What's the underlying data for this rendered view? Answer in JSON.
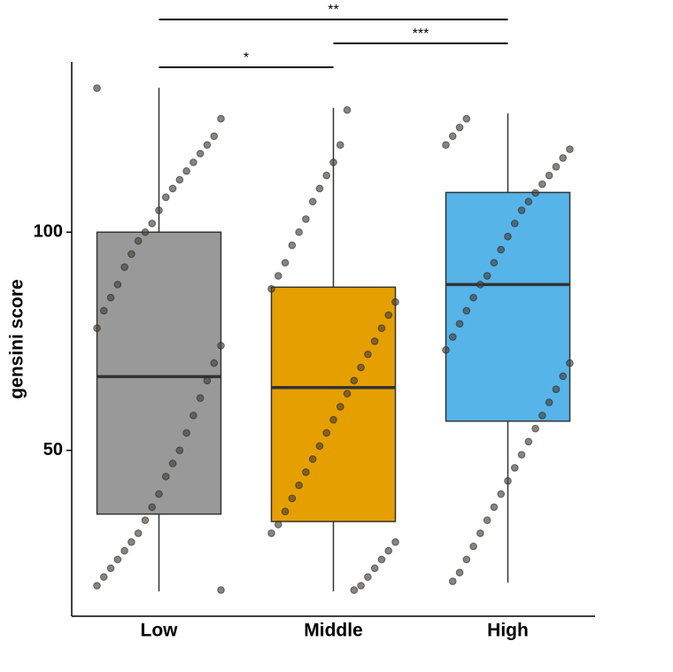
{
  "chart_data": {
    "type": "box",
    "ylabel": "gensini score",
    "categories": [
      "Low",
      "Middle",
      "High"
    ],
    "ylim": [
      12,
      139
    ],
    "yticks": [
      50,
      100
    ],
    "point_color": "#4a4038",
    "boxes": [
      {
        "color": "#999999",
        "min": 17.7,
        "q1": 35.4,
        "median": 66.9,
        "q3": 100,
        "max": 133.1,
        "points": [
          133,
          126,
          122,
          120,
          118,
          116,
          114,
          112,
          110,
          108,
          105,
          102,
          100,
          98,
          95,
          92,
          88,
          85,
          82,
          78,
          74,
          70,
          66,
          62,
          58,
          54,
          50,
          47,
          44,
          40,
          37,
          34,
          31,
          29,
          27,
          25,
          23,
          21,
          19,
          18
        ]
      },
      {
        "color": "#E69F00",
        "min": 17.7,
        "q1": 33.7,
        "median": 64.4,
        "q3": 87.4,
        "max": 128.5,
        "points": [
          128,
          120,
          116,
          113,
          110,
          107,
          103,
          100,
          97,
          93,
          90,
          87,
          84,
          81,
          78,
          75,
          72,
          69,
          66,
          63,
          60,
          57,
          54,
          51,
          48,
          45,
          42,
          39,
          36,
          33,
          31,
          29,
          27,
          25,
          23,
          21,
          19,
          18
        ]
      },
      {
        "color": "#56B4E9",
        "min": 19.7,
        "q1": 56.7,
        "median": 88.0,
        "q3": 109.1,
        "max": 127.2,
        "points": [
          126,
          124,
          122,
          120,
          119,
          117,
          115,
          113,
          111,
          109,
          107,
          105,
          102,
          99,
          96,
          93,
          90,
          88,
          85,
          82,
          79,
          76,
          73,
          70,
          67,
          64,
          61,
          58,
          55,
          52,
          49,
          46,
          43,
          40,
          37,
          34,
          31,
          28,
          25,
          22,
          20
        ]
      }
    ],
    "comparisons": [
      {
        "groups": [
          0,
          1
        ],
        "label": "*"
      },
      {
        "groups": [
          1,
          2
        ],
        "label": "***"
      },
      {
        "groups": [
          0,
          2
        ],
        "label": "**"
      }
    ]
  }
}
